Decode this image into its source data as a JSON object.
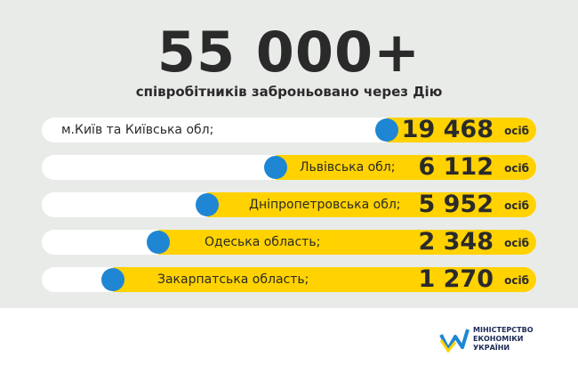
{
  "headline": "55 000+",
  "subtitle": "співробітників заброньовано через Дію",
  "rows": [
    {
      "label": "м.Київ та Київська обл;",
      "value": "19 468",
      "unit": "осіб"
    },
    {
      "label": "Львівська обл;",
      "value": "6 112",
      "unit": "осіб"
    },
    {
      "label": "Дніпропетровська обл;",
      "value": "5 952",
      "unit": "осіб"
    },
    {
      "label": "Одеська область;",
      "value": "2 348",
      "unit": "осіб"
    },
    {
      "label": "Закарпатська область;",
      "value": "1 270",
      "unit": "осіб"
    }
  ],
  "logo": [
    "МІНІСТЕРСТВО",
    "ЕКОНОМІКИ",
    "УКРАЇНИ"
  ]
}
